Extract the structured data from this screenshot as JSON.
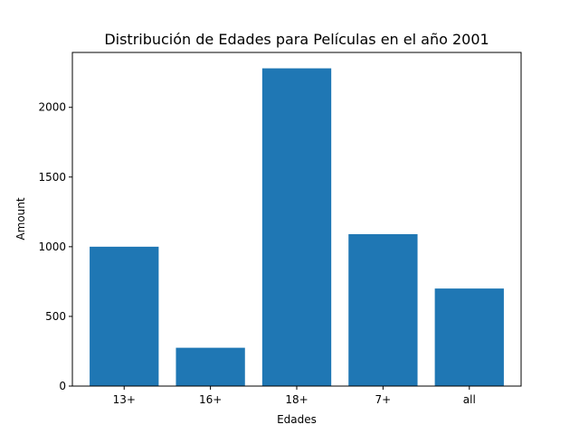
{
  "chart_data": {
    "type": "bar",
    "title": "Distribución de Edades para Películas en el año 2001",
    "xlabel": "Edades",
    "ylabel": "Amount",
    "categories": [
      "13+",
      "16+",
      "18+",
      "7+",
      "all"
    ],
    "values": [
      1000,
      275,
      2280,
      1090,
      700
    ],
    "ylim": [
      0,
      2394
    ],
    "yticks": [
      0,
      500,
      1000,
      1500,
      2000
    ],
    "bar_color": "#1f77b4",
    "grid": false
  }
}
